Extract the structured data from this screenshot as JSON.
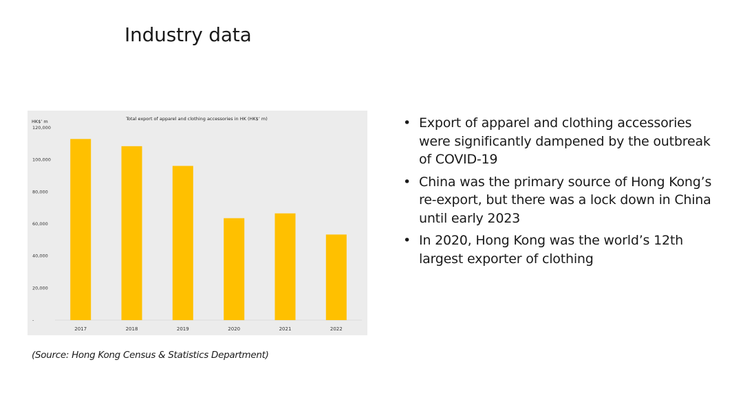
{
  "slide": {
    "title": "Industry data",
    "source": "(Source: Hong Kong Census & Statistics Department)"
  },
  "bullets": [
    "Export of apparel and clothing accessories were significantly dampened by the outbreak of COVID-19",
    "China was the primary source of Hong Kong’s re-export, but there was a lock down in China until early 2023",
    "In 2020, Hong Kong was the world’s 12th largest exporter of clothing"
  ],
  "bullet_symbol": "•",
  "chart_data": {
    "type": "bar",
    "title": "Total export of apparel and clothing accessories in HK (HK$’ m)",
    "ylabel": "HK$’ m",
    "xlabel": "",
    "categories": [
      "2017",
      "2018",
      "2019",
      "2020",
      "2021",
      "2022"
    ],
    "values": [
      113000,
      108500,
      96200,
      63600,
      66600,
      53400
    ],
    "ylim": [
      0,
      120000
    ],
    "yticks": [
      0,
      20000,
      40000,
      60000,
      80000,
      100000,
      120000
    ],
    "ytick_labels": [
      "-",
      "20,000",
      "40,000",
      "60,000",
      "80,000",
      "100,000",
      "120,000"
    ],
    "grid": false,
    "bar_color": "#FFC000",
    "background_color": "#ECECEC"
  }
}
